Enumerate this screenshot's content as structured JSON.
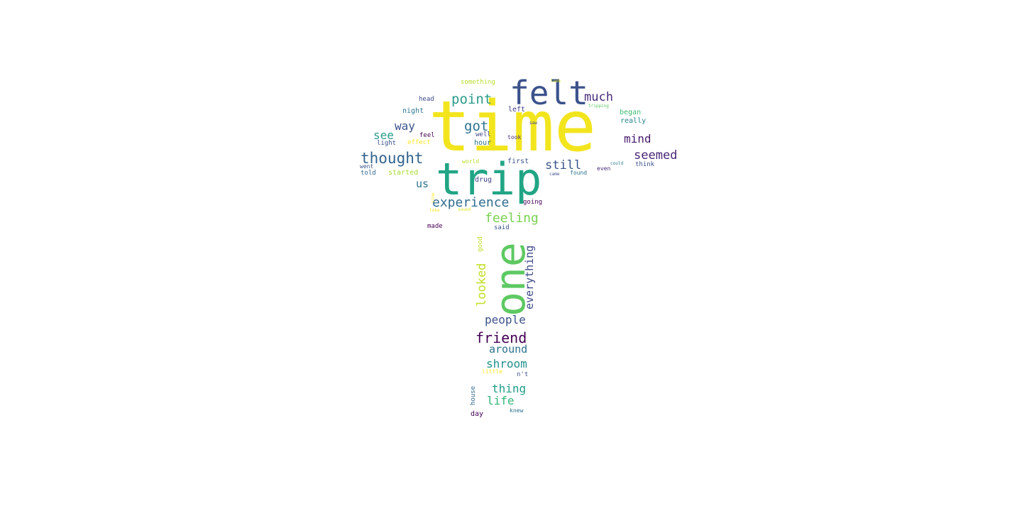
{
  "words": [
    {
      "text": "time",
      "color": "#f2e51d"
    },
    {
      "text": "felt",
      "color": "#3b528b"
    },
    {
      "text": "trip",
      "color": "#21a585"
    },
    {
      "text": "one",
      "color": "#5ec962"
    },
    {
      "text": "point",
      "color": "#2a9b8a"
    },
    {
      "text": "much",
      "color": "#472d7b"
    },
    {
      "text": "got",
      "color": "#2c728e"
    },
    {
      "text": "way",
      "color": "#3b528b"
    },
    {
      "text": "see",
      "color": "#2a9b8a"
    },
    {
      "text": "mind",
      "color": "#481b6d"
    },
    {
      "text": "thought",
      "color": "#33638d"
    },
    {
      "text": "seemed",
      "color": "#482475"
    },
    {
      "text": "still",
      "color": "#3b528b"
    },
    {
      "text": "us",
      "color": "#2c728e"
    },
    {
      "text": "experience",
      "color": "#2f6c8e"
    },
    {
      "text": "feeling",
      "color": "#7ad151"
    },
    {
      "text": "looked",
      "color": "#c2df23"
    },
    {
      "text": "everything",
      "color": "#3e4989"
    },
    {
      "text": "people",
      "color": "#3b528b"
    },
    {
      "text": "friend",
      "color": "#440154"
    },
    {
      "text": "around",
      "color": "#2c728e"
    },
    {
      "text": "shroom",
      "color": "#21918c"
    },
    {
      "text": "thing",
      "color": "#1f9e89"
    },
    {
      "text": "life",
      "color": "#35b779"
    },
    {
      "text": "something",
      "color": "#b5de2b"
    },
    {
      "text": "head",
      "color": "#3e4989"
    },
    {
      "text": "night",
      "color": "#2a788e"
    },
    {
      "text": "left",
      "color": "#424086"
    },
    {
      "text": "began",
      "color": "#3dbc74"
    },
    {
      "text": "really",
      "color": "#26828e"
    },
    {
      "text": "feel",
      "color": "#440154"
    },
    {
      "text": "well",
      "color": "#414487"
    },
    {
      "text": "light",
      "color": "#3b528b"
    },
    {
      "text": "effect",
      "color": "#fde725"
    },
    {
      "text": "hour",
      "color": "#2c728e"
    },
    {
      "text": "took",
      "color": "#472d7b"
    },
    {
      "text": "went",
      "color": "#3b528b"
    },
    {
      "text": "told",
      "color": "#31688e"
    },
    {
      "text": "started",
      "color": "#a8db34"
    },
    {
      "text": "world",
      "color": "#b5de2b"
    },
    {
      "text": "first",
      "color": "#3b528b"
    },
    {
      "text": "drug",
      "color": "#424086"
    },
    {
      "text": "found",
      "color": "#2c728e"
    },
    {
      "text": "even",
      "color": "#472d7b"
    },
    {
      "text": "think",
      "color": "#3b528b"
    },
    {
      "text": "going",
      "color": "#440154"
    },
    {
      "text": "made",
      "color": "#440154"
    },
    {
      "text": "said",
      "color": "#3b528b"
    },
    {
      "text": "good",
      "color": "#bddf26"
    },
    {
      "text": "little",
      "color": "#fde725"
    },
    {
      "text": "n't",
      "color": "#3b528b"
    },
    {
      "text": "house",
      "color": "#31688e"
    },
    {
      "text": "knew",
      "color": "#2c728e"
    },
    {
      "text": "day",
      "color": "#440154"
    },
    {
      "text": "tripping",
      "color": "#5ec962"
    },
    {
      "text": "look",
      "color": "#d8e219"
    },
    {
      "text": "saw",
      "color": "#3e4989"
    },
    {
      "text": "came",
      "color": "#3b528b"
    },
    {
      "text": "could",
      "color": "#2a788e"
    },
    {
      "text": "take",
      "color": "#fde725"
    },
    {
      "text": "sound",
      "color": "#d8e219"
    },
    {
      "text": "time",
      "color": "#fde725"
    }
  ]
}
